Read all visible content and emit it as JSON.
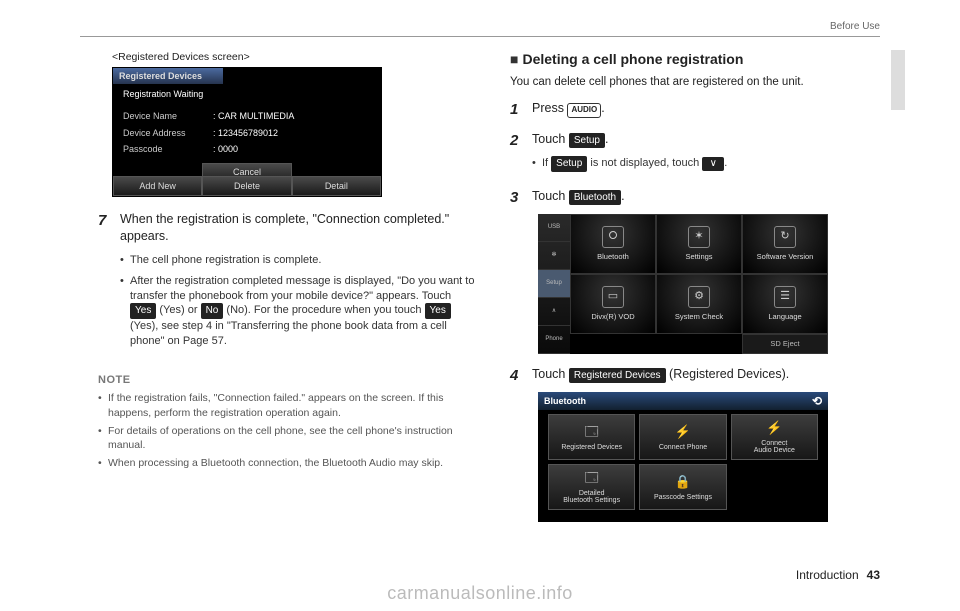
{
  "header": {
    "section": "Before Use"
  },
  "left": {
    "caption": "<Registered Devices screen>",
    "shot1": {
      "title": "Registered Devices",
      "status": "Registration Waiting",
      "rows": [
        {
          "label": "Device Name",
          "value": ": CAR MULTIMEDIA"
        },
        {
          "label": "Device Address",
          "value": ": 123456789012"
        },
        {
          "label": "Passcode",
          "value": ": 0000"
        }
      ],
      "cancel": "Cancel",
      "footer": [
        "Add New",
        "Delete",
        "Detail"
      ]
    },
    "step7": {
      "num": "7",
      "main": "When the registration is complete, \"Connection completed.\" appears.",
      "bullets": [
        "The cell phone registration is complete.",
        "After the registration completed message is displayed, \"Do you want to transfer the phonebook from your mobile device?\" appears. Touch  [YES1]  (Yes) or  [NO]  (No). For the procedure when you touch  [YES2]  (Yes), see step 4 in \"Transferring the phone book data from a cell phone\" on Page 57."
      ],
      "btn_yes": "Yes",
      "btn_no": "No"
    },
    "note_heading": "NOTE",
    "notes": [
      "If the registration fails, \"Connection failed.\" appears on the screen. If this happens, perform the registration operation again.",
      "For details of operations on the cell phone, see the cell phone's instruction manual.",
      "When processing a Bluetooth connection, the Bluetooth Audio may skip."
    ]
  },
  "right": {
    "subheading": "Deleting a cell phone registration",
    "intro": "You can delete cell phones that are registered on the unit.",
    "step1": {
      "num": "1",
      "text_a": "Press ",
      "key": "AUDIO",
      "text_b": "."
    },
    "step2": {
      "num": "2",
      "text_a": "Touch ",
      "btn": "Setup",
      "text_b": ".",
      "sub_a": "If ",
      "sub_btn": "Setup",
      "sub_b": " is not displayed, touch ",
      "sub_c": "."
    },
    "step3": {
      "num": "3",
      "text_a": "Touch ",
      "btn": "Bluetooth",
      "text_b": "."
    },
    "shot2": {
      "side": [
        "USB",
        "",
        "Setup",
        "",
        "Phone"
      ],
      "cells": [
        {
          "label": "Bluetooth",
          "icon": "⭘"
        },
        {
          "label": "Settings",
          "icon": "✶"
        },
        {
          "label": "Software Version",
          "icon": "↻"
        },
        {
          "label": "Divx(R) VOD",
          "icon": "▭"
        },
        {
          "label": "System Check",
          "icon": "⚙"
        },
        {
          "label": "Language",
          "icon": "☰"
        }
      ],
      "eject": "SD Eject"
    },
    "step4": {
      "num": "4",
      "text_a": "Touch ",
      "btn": "Registered Devices",
      "text_b": " (Registered Devices)."
    },
    "shot3": {
      "bar": "Bluetooth",
      "cells": [
        {
          "label": "Registered Devices",
          "icon": "🗔"
        },
        {
          "label": "Connect Phone",
          "icon": "⚡"
        },
        {
          "label": "Connect\nAudio Device",
          "icon": "⚡"
        },
        {
          "label": "Detailed\nBluetooth Settings",
          "icon": "🗔"
        },
        {
          "label": "Passcode Settings",
          "icon": "🔒"
        }
      ]
    }
  },
  "footer": {
    "section": "Introduction",
    "page": "43"
  },
  "watermark": "carmanualsonline.info"
}
